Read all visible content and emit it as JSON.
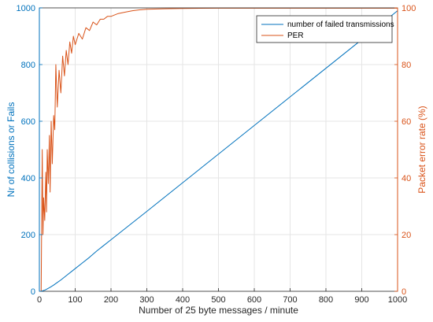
{
  "colors": {
    "failed": "#0072BD",
    "per": "#D95319",
    "grid": "#e5e5e5",
    "axis": "#262626",
    "background": "#ffffff"
  },
  "chart_data": {
    "type": "line",
    "title": "",
    "xlabel": "Number of 25 byte  messages / minute",
    "ylabel_left": "Nr of collisions or Fails",
    "ylabel_right": "Packet error rate (%)",
    "xlim": [
      0,
      1000
    ],
    "ylim_left": [
      0,
      1000
    ],
    "ylim_right": [
      0,
      100
    ],
    "x_ticks": [
      0,
      100,
      200,
      300,
      400,
      500,
      600,
      700,
      800,
      900,
      1000
    ],
    "y_left_ticks": [
      0,
      200,
      400,
      600,
      800,
      1000
    ],
    "y_right_ticks": [
      0,
      20,
      40,
      60,
      80,
      100
    ],
    "grid": true,
    "legend_position": "top-right",
    "series": [
      {
        "name": "number of failed transmissions",
        "axis": "left",
        "x": [
          1,
          5,
          10,
          15,
          20,
          30,
          40,
          50,
          60,
          70,
          80,
          90,
          100,
          120,
          140,
          160,
          180,
          200,
          250,
          300,
          400,
          500,
          600,
          700,
          800,
          900,
          1000
        ],
        "y": [
          0,
          0,
          2,
          4,
          7,
          14,
          22,
          31,
          40,
          50,
          60,
          70,
          80,
          100,
          120,
          142,
          162,
          182,
          232,
          282,
          383,
          484,
          585,
          686,
          787,
          888,
          990
        ]
      },
      {
        "name": "PER",
        "axis": "right",
        "x": [
          1,
          5,
          8,
          10,
          12,
          15,
          18,
          20,
          22,
          25,
          28,
          30,
          33,
          36,
          40,
          43,
          46,
          50,
          55,
          60,
          65,
          70,
          75,
          80,
          85,
          90,
          95,
          100,
          110,
          120,
          130,
          140,
          150,
          160,
          170,
          180,
          190,
          200,
          220,
          240,
          260,
          280,
          300,
          350,
          400,
          500,
          600,
          700,
          800,
          900,
          1000
        ],
        "y": [
          0,
          0,
          50,
          20,
          33,
          25,
          42,
          28,
          50,
          38,
          55,
          35,
          60,
          45,
          62,
          57,
          80,
          65,
          78,
          70,
          83,
          76,
          85,
          80,
          88,
          84,
          90,
          87,
          91,
          89,
          93,
          92,
          95,
          94,
          96,
          96,
          97,
          97,
          98,
          98.5,
          99,
          99.3,
          99.5,
          99.7,
          99.8,
          99.9,
          99.9,
          99.9,
          99.9,
          99.9,
          99.9
        ]
      }
    ]
  }
}
